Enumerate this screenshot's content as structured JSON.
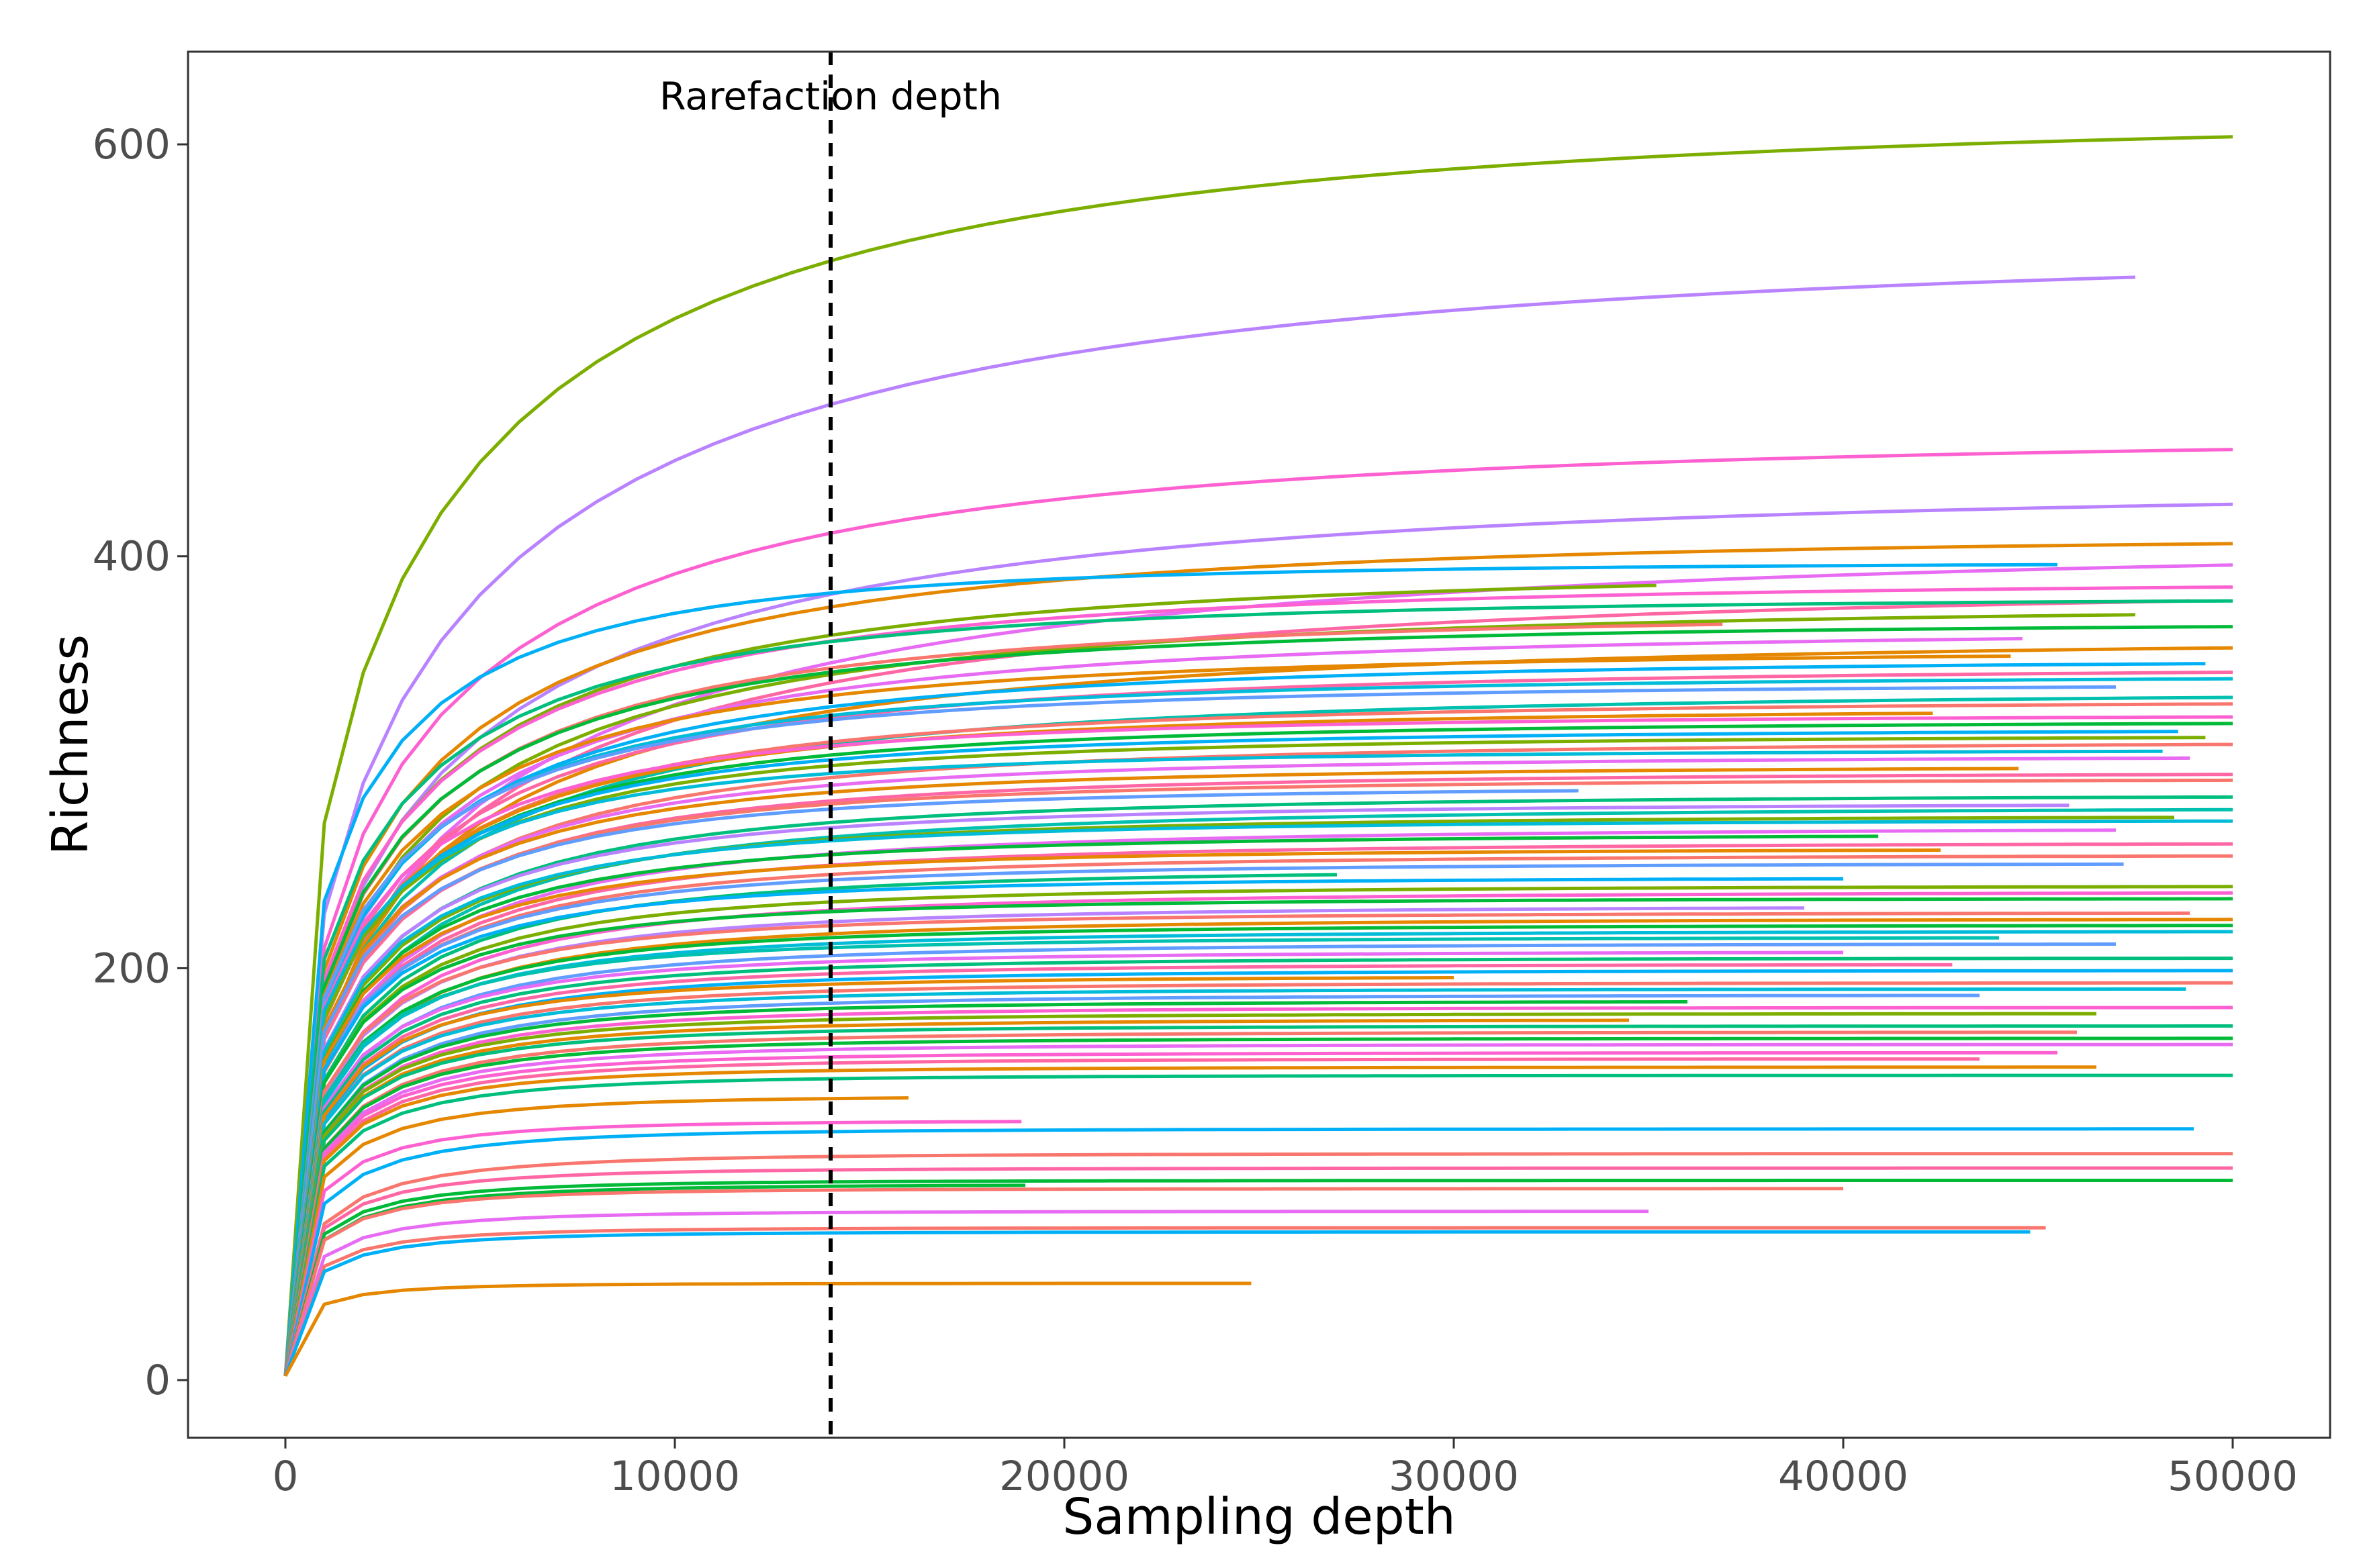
{
  "chart_data": {
    "type": "line",
    "title": "",
    "xlabel": "Sampling depth",
    "ylabel": "Richness",
    "xlim": [
      -2500,
      52500
    ],
    "ylim": [
      -28,
      645
    ],
    "x_ticks": [
      0,
      10000,
      20000,
      30000,
      40000,
      50000
    ],
    "x_tick_labels": [
      "0",
      "10000",
      "20000",
      "30000",
      "40000",
      "50000"
    ],
    "y_ticks": [
      0,
      200,
      400,
      600
    ],
    "y_tick_labels": [
      "0",
      "200",
      "400",
      "600"
    ],
    "grid": false,
    "legend": "none",
    "reference_line": {
      "x": 14000,
      "style": "dashed",
      "color": "#000000",
      "label": "Rarefaction depth"
    },
    "palette": [
      "#F8766D",
      "#E58700",
      "#C99800",
      "#A3A500",
      "#6BB100",
      "#00BA38",
      "#00BF7D",
      "#00C0AF",
      "#00BCD8",
      "#00B0F6",
      "#619CFF",
      "#B983FF",
      "#E76BF3",
      "#FD61D1",
      "#FF67A4"
    ],
    "curve_model": "richness(x) = S_max * (1 - exp(-(x/k)^0.5))",
    "series": [
      {
        "s": 614,
        "k": 3000,
        "end": 50000,
        "color": "#7CAE00"
      },
      {
        "s": 550,
        "k": 3600,
        "end": 47500,
        "color": "#B983FF"
      },
      {
        "s": 458,
        "k": 2700,
        "end": 50000,
        "color": "#FD61D1"
      },
      {
        "s": 433,
        "k": 3100,
        "end": 50000,
        "color": "#B983FF"
      },
      {
        "s": 410,
        "k": 2300,
        "end": 50000,
        "color": "#E58700"
      },
      {
        "s": 406,
        "k": 3700,
        "end": 50000,
        "color": "#E76BF3"
      },
      {
        "s": 397,
        "k": 1300,
        "end": 45500,
        "color": "#00B0F6"
      },
      {
        "s": 393,
        "k": 2200,
        "end": 35200,
        "color": "#7CAE00"
      },
      {
        "s": 386,
        "k": 3200,
        "end": 48900,
        "color": "#FF67A4"
      },
      {
        "s": 388,
        "k": 2100,
        "end": 50000,
        "color": "#FD61D1"
      },
      {
        "s": 380,
        "k": 1700,
        "end": 50000,
        "color": "#00BF7D"
      },
      {
        "s": 376,
        "k": 2400,
        "end": 47500,
        "color": "#7CAE00"
      },
      {
        "s": 372,
        "k": 2000,
        "end": 36900,
        "color": "#F8766D"
      },
      {
        "s": 368,
        "k": 1900,
        "end": 50000,
        "color": "#00BA38"
      },
      {
        "s": 364,
        "k": 2200,
        "end": 44600,
        "color": "#E76BF3"
      },
      {
        "s": 360,
        "k": 2600,
        "end": 50000,
        "color": "#E58700"
      },
      {
        "s": 354,
        "k": 1800,
        "end": 44300,
        "color": "#E58700"
      },
      {
        "s": 350,
        "k": 1900,
        "end": 49300,
        "color": "#00B0F6"
      },
      {
        "s": 346,
        "k": 2000,
        "end": 50000,
        "color": "#FF67A4"
      },
      {
        "s": 342,
        "k": 1700,
        "end": 50000,
        "color": "#00BCD8"
      },
      {
        "s": 338,
        "k": 1600,
        "end": 47000,
        "color": "#619CFF"
      },
      {
        "s": 334,
        "k": 2100,
        "end": 50000,
        "color": "#00C0AF"
      },
      {
        "s": 330,
        "k": 1800,
        "end": 50000,
        "color": "#F8766D"
      },
      {
        "s": 326,
        "k": 1700,
        "end": 42300,
        "color": "#E58700"
      },
      {
        "s": 323,
        "k": 1500,
        "end": 50000,
        "color": "#FD61D1"
      },
      {
        "s": 320,
        "k": 1600,
        "end": 50000,
        "color": "#00BA38"
      },
      {
        "s": 316,
        "k": 1500,
        "end": 48600,
        "color": "#00B0F6"
      },
      {
        "s": 313,
        "k": 1500,
        "end": 49300,
        "color": "#7CAE00"
      },
      {
        "s": 310,
        "k": 1700,
        "end": 50000,
        "color": "#F8766D"
      },
      {
        "s": 306,
        "k": 1300,
        "end": 48200,
        "color": "#00BCD8"
      },
      {
        "s": 303,
        "k": 1500,
        "end": 48900,
        "color": "#E76BF3"
      },
      {
        "s": 298,
        "k": 1400,
        "end": 44500,
        "color": "#E58700"
      },
      {
        "s": 295,
        "k": 1500,
        "end": 50000,
        "color": "#FF67A4"
      },
      {
        "s": 292,
        "k": 1400,
        "end": 50000,
        "color": "#F8766D"
      },
      {
        "s": 288,
        "k": 1300,
        "end": 33200,
        "color": "#619CFF"
      },
      {
        "s": 284,
        "k": 1500,
        "end": 50000,
        "color": "#00BF7D"
      },
      {
        "s": 280,
        "k": 1400,
        "end": 45800,
        "color": "#B983FF"
      },
      {
        "s": 278,
        "k": 1600,
        "end": 50000,
        "color": "#00C0AF"
      },
      {
        "s": 274,
        "k": 1400,
        "end": 48500,
        "color": "#7CAE00"
      },
      {
        "s": 272,
        "k": 1300,
        "end": 50000,
        "color": "#00BCD8"
      },
      {
        "s": 268,
        "k": 1500,
        "end": 47000,
        "color": "#E76BF3"
      },
      {
        "s": 265,
        "k": 1300,
        "end": 40900,
        "color": "#00BA38"
      },
      {
        "s": 261,
        "k": 1400,
        "end": 50000,
        "color": "#FF67A4"
      },
      {
        "s": 258,
        "k": 1200,
        "end": 42500,
        "color": "#E58700"
      },
      {
        "s": 255,
        "k": 1300,
        "end": 50000,
        "color": "#F8766D"
      },
      {
        "s": 251,
        "k": 1200,
        "end": 47200,
        "color": "#619CFF"
      },
      {
        "s": 248,
        "k": 1300,
        "end": 27000,
        "color": "#00BF7D"
      },
      {
        "s": 244,
        "k": 1100,
        "end": 40000,
        "color": "#00B0F6"
      },
      {
        "s": 240,
        "k": 1200,
        "end": 50000,
        "color": "#7CAE00"
      },
      {
        "s": 237,
        "k": 1300,
        "end": 50000,
        "color": "#FD61D1"
      },
      {
        "s": 234,
        "k": 1100,
        "end": 50000,
        "color": "#00BA38"
      },
      {
        "s": 230,
        "k": 1200,
        "end": 39000,
        "color": "#B983FF"
      },
      {
        "s": 227,
        "k": 1100,
        "end": 48900,
        "color": "#F8766D"
      },
      {
        "s": 224,
        "k": 1200,
        "end": 50000,
        "color": "#E58700"
      },
      {
        "s": 221,
        "k": 1100,
        "end": 50000,
        "color": "#00BA38"
      },
      {
        "s": 218,
        "k": 1100,
        "end": 50000,
        "color": "#00BCD8"
      },
      {
        "s": 215,
        "k": 1000,
        "end": 44000,
        "color": "#00C0AF"
      },
      {
        "s": 212,
        "k": 1100,
        "end": 47000,
        "color": "#619CFF"
      },
      {
        "s": 208,
        "k": 1000,
        "end": 40000,
        "color": "#E76BF3"
      },
      {
        "s": 205,
        "k": 1000,
        "end": 50000,
        "color": "#00BF7D"
      },
      {
        "s": 202,
        "k": 1000,
        "end": 42800,
        "color": "#FF67A4"
      },
      {
        "s": 199,
        "k": 1000,
        "end": 50000,
        "color": "#00B0F6"
      },
      {
        "s": 196,
        "k": 900,
        "end": 30000,
        "color": "#E58700"
      },
      {
        "s": 193,
        "k": 950,
        "end": 50000,
        "color": "#F8766D"
      },
      {
        "s": 190,
        "k": 900,
        "end": 48800,
        "color": "#00BCD8"
      },
      {
        "s": 187,
        "k": 950,
        "end": 43500,
        "color": "#619CFF"
      },
      {
        "s": 184,
        "k": 900,
        "end": 36000,
        "color": "#00BA38"
      },
      {
        "s": 181,
        "k": 900,
        "end": 50000,
        "color": "#FD61D1"
      },
      {
        "s": 178,
        "k": 850,
        "end": 46500,
        "color": "#7CAE00"
      },
      {
        "s": 175,
        "k": 850,
        "end": 34500,
        "color": "#E58700"
      },
      {
        "s": 172,
        "k": 800,
        "end": 50000,
        "color": "#00BF7D"
      },
      {
        "s": 169,
        "k": 850,
        "end": 46000,
        "color": "#F8766D"
      },
      {
        "s": 166,
        "k": 800,
        "end": 50000,
        "color": "#00BA38"
      },
      {
        "s": 163,
        "k": 800,
        "end": 50000,
        "color": "#E76BF3"
      },
      {
        "s": 159,
        "k": 750,
        "end": 45500,
        "color": "#FD61D1"
      },
      {
        "s": 156,
        "k": 750,
        "end": 43500,
        "color": "#FF67A4"
      },
      {
        "s": 152,
        "k": 700,
        "end": 46500,
        "color": "#E58700"
      },
      {
        "s": 148,
        "k": 700,
        "end": 50000,
        "color": "#00BF7D"
      },
      {
        "s": 138,
        "k": 650,
        "end": 16000,
        "color": "#E58700"
      },
      {
        "s": 126,
        "k": 600,
        "end": 18900,
        "color": "#FD61D1"
      },
      {
        "s": 122,
        "k": 700,
        "end": 49000,
        "color": "#00B0F6"
      },
      {
        "s": 110,
        "k": 750,
        "end": 50000,
        "color": "#F8766D"
      },
      {
        "s": 103,
        "k": 650,
        "end": 50000,
        "color": "#FF67A4"
      },
      {
        "s": 97,
        "k": 600,
        "end": 50000,
        "color": "#00BA38"
      },
      {
        "s": 95,
        "k": 650,
        "end": 19000,
        "color": "#00BA38"
      },
      {
        "s": 93,
        "k": 600,
        "end": 40000,
        "color": "#F8766D"
      },
      {
        "s": 82,
        "k": 600,
        "end": 35000,
        "color": "#E76BF3"
      },
      {
        "s": 74,
        "k": 550,
        "end": 45200,
        "color": "#F8766D"
      },
      {
        "s": 72,
        "k": 600,
        "end": 44800,
        "color": "#00B0F6"
      },
      {
        "s": 47,
        "k": 450,
        "end": 24800,
        "color": "#E58700"
      }
    ]
  }
}
